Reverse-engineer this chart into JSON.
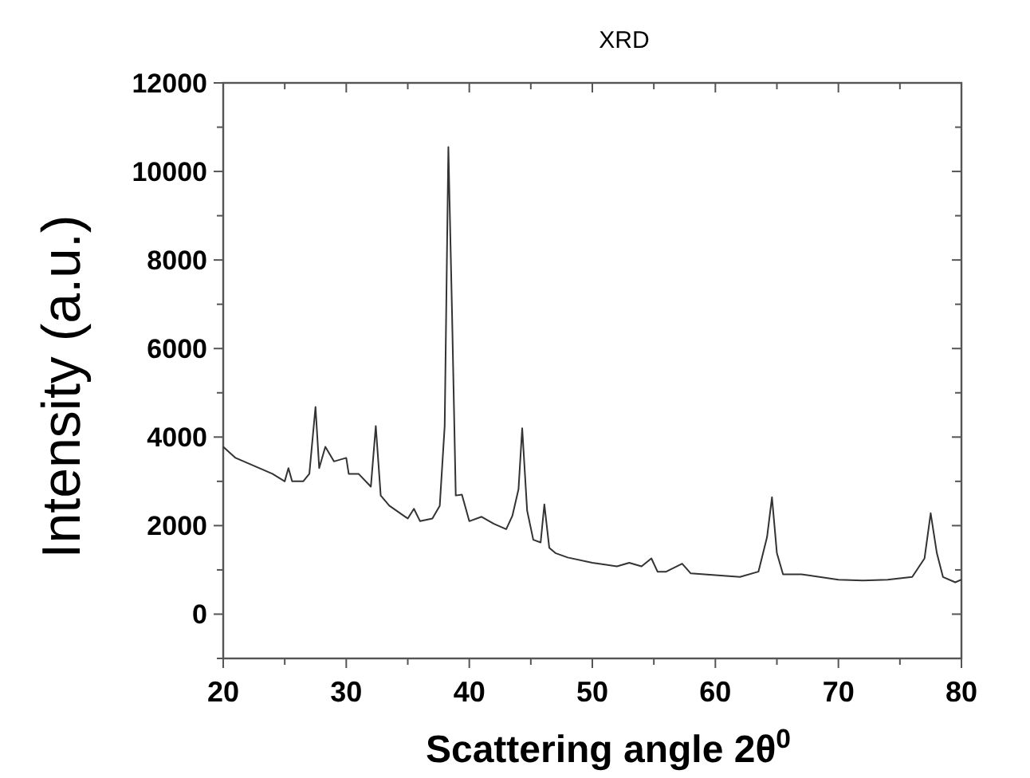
{
  "chart_data": {
    "type": "line",
    "title": "XRD",
    "xlabel": "Scattering angle 2θ$^{0}$",
    "ylabel": "Intensity (a.u.)",
    "xlim": [
      20,
      80
    ],
    "ylim": [
      -1000,
      12000
    ],
    "xticks": [
      20,
      {
        "value": 25,
        "label": null
      },
      30,
      {
        "value": 35,
        "label": null
      },
      40,
      {
        "value": 45,
        "label": null
      },
      50,
      {
        "value": 55,
        "label": null
      },
      60,
      {
        "value": 65,
        "label": null
      },
      70,
      {
        "value": 75,
        "label": null
      },
      80
    ],
    "yticks": [
      {
        "value": -1000,
        "label": null
      },
      0,
      {
        "value": 1000,
        "label": null
      },
      2000,
      {
        "value": 3000,
        "label": null
      },
      4000,
      {
        "value": 5000,
        "label": null
      },
      6000,
      {
        "value": 7000,
        "label": null
      },
      8000,
      {
        "value": 9000,
        "label": null
      },
      10000,
      {
        "value": 11000,
        "label": null
      },
      12000
    ],
    "grid": false,
    "marker": "none",
    "line_style": "solid",
    "series": [
      {
        "color": "#333333",
        "x": [
          20,
          21,
          22.5,
          24,
          25,
          25.3,
          25.6,
          26.5,
          27,
          27.5,
          27.8,
          28.3,
          29,
          30,
          30.2,
          31,
          32,
          32.4,
          32.8,
          33.5,
          35,
          35.5,
          36,
          37,
          37.6,
          38,
          38.3,
          38.6,
          38.9,
          39.4,
          40,
          41,
          42,
          43,
          43.5,
          44,
          44.3,
          44.7,
          45.2,
          45.8,
          46.1,
          46.5,
          47,
          48,
          50,
          52,
          53,
          54,
          54.8,
          55.3,
          56,
          57.3,
          58,
          60,
          62,
          63.5,
          64.2,
          64.6,
          65,
          65.5,
          67,
          70,
          72,
          74,
          76,
          77,
          77.5,
          78,
          78.5,
          79.5,
          80
        ],
        "values": [
          3780,
          3530,
          3350,
          3170,
          3000,
          3300,
          3000,
          3000,
          3170,
          4680,
          3300,
          3780,
          3450,
          3530,
          3170,
          3170,
          2880,
          4250,
          2680,
          2450,
          2160,
          2380,
          2100,
          2160,
          2450,
          4250,
          10550,
          6770,
          2680,
          2700,
          2100,
          2200,
          2040,
          1920,
          2220,
          2820,
          4200,
          2340,
          1680,
          1620,
          2480,
          1500,
          1380,
          1280,
          1160,
          1080,
          1160,
          1080,
          1260,
          960,
          960,
          1140,
          920,
          880,
          840,
          960,
          1740,
          2640,
          1380,
          900,
          900,
          780,
          760,
          780,
          840,
          1260,
          2280,
          1380,
          840,
          720,
          780
        ]
      }
    ]
  }
}
